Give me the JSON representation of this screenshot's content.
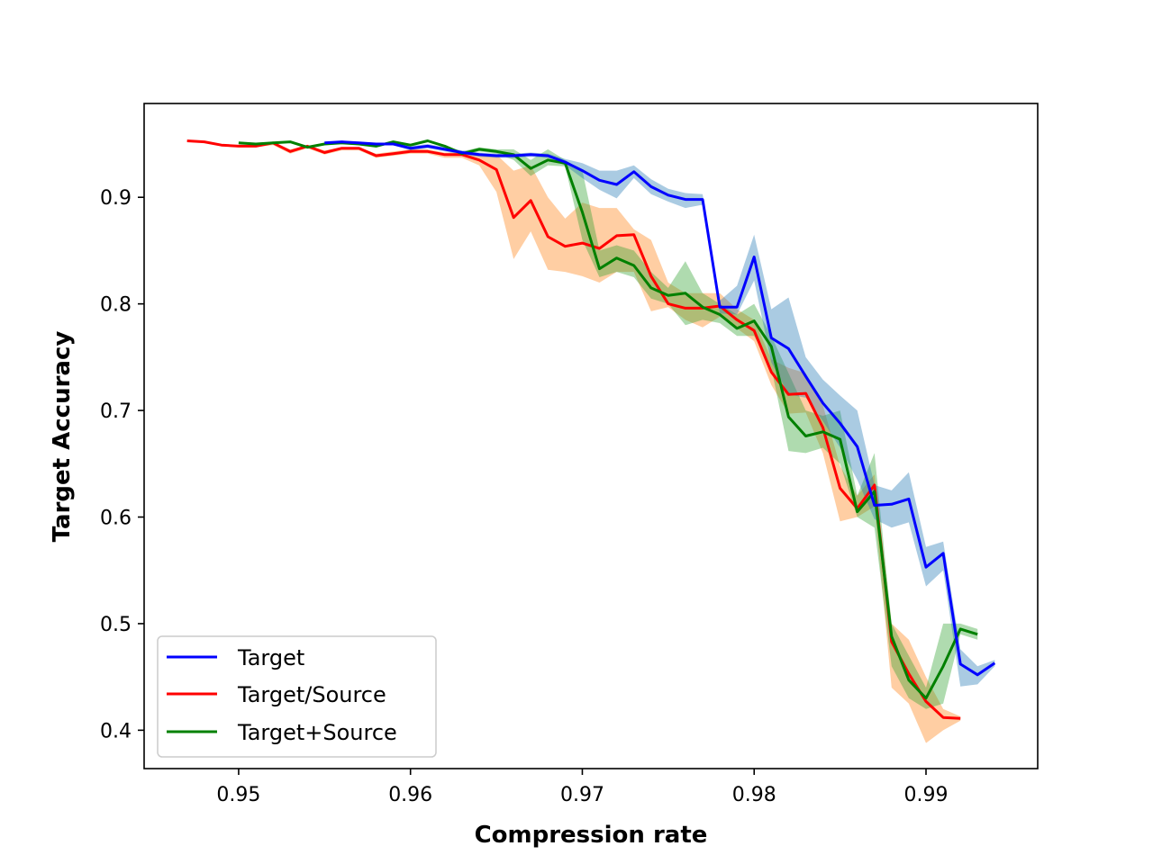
{
  "chart_data": {
    "type": "line",
    "xlabel": "Compression rate",
    "ylabel": "Target Accuracy",
    "xlim": [
      0.9445,
      0.9965
    ],
    "ylim": [
      0.364,
      0.988
    ],
    "x_ticks": [
      0.95,
      0.96,
      0.97,
      0.98,
      0.99
    ],
    "x_tick_labels": [
      "0.95",
      "0.96",
      "0.97",
      "0.98",
      "0.99"
    ],
    "y_ticks": [
      0.4,
      0.5,
      0.6,
      0.7,
      0.8,
      0.9
    ],
    "y_tick_labels": [
      "0.4",
      "0.5",
      "0.6",
      "0.7",
      "0.8",
      "0.9"
    ],
    "grid": false,
    "legend_position": "lower-left",
    "series": [
      {
        "name": "Target",
        "color": "#0000ff",
        "band_color": "#1f77b4",
        "points": [
          [
            0.955,
            0.951,
            0.952,
            0.951
          ],
          [
            0.956,
            0.952,
            0.953,
            0.951
          ],
          [
            0.957,
            0.951,
            0.952,
            0.95
          ],
          [
            0.958,
            0.95,
            0.951,
            0.949
          ],
          [
            0.959,
            0.95,
            0.951,
            0.949
          ],
          [
            0.96,
            0.946,
            0.948,
            0.944
          ],
          [
            0.961,
            0.948,
            0.95,
            0.946
          ],
          [
            0.962,
            0.945,
            0.947,
            0.943
          ],
          [
            0.963,
            0.942,
            0.944,
            0.94
          ],
          [
            0.964,
            0.94,
            0.942,
            0.938
          ],
          [
            0.965,
            0.939,
            0.941,
            0.937
          ],
          [
            0.966,
            0.939,
            0.941,
            0.937
          ],
          [
            0.967,
            0.94,
            0.942,
            0.938
          ],
          [
            0.968,
            0.939,
            0.941,
            0.937
          ],
          [
            0.969,
            0.933,
            0.936,
            0.93
          ],
          [
            0.97,
            0.925,
            0.932,
            0.918
          ],
          [
            0.971,
            0.916,
            0.925,
            0.907
          ],
          [
            0.972,
            0.912,
            0.925,
            0.899
          ],
          [
            0.973,
            0.924,
            0.93,
            0.918
          ],
          [
            0.974,
            0.91,
            0.917,
            0.903
          ],
          [
            0.975,
            0.902,
            0.908,
            0.896
          ],
          [
            0.976,
            0.898,
            0.904,
            0.89
          ],
          [
            0.977,
            0.898,
            0.903,
            0.893
          ],
          [
            0.978,
            0.797,
            0.803,
            0.791
          ],
          [
            0.979,
            0.797,
            0.817,
            0.79
          ],
          [
            0.98,
            0.844,
            0.865,
            0.822
          ],
          [
            0.981,
            0.768,
            0.795,
            0.745
          ],
          [
            0.982,
            0.758,
            0.806,
            0.715
          ],
          [
            0.983,
            0.732,
            0.75,
            0.712
          ],
          [
            0.984,
            0.707,
            0.729,
            0.69
          ],
          [
            0.985,
            0.688,
            0.714,
            0.665
          ],
          [
            0.986,
            0.666,
            0.7,
            0.635
          ],
          [
            0.987,
            0.611,
            0.63,
            0.598
          ],
          [
            0.988,
            0.612,
            0.625,
            0.59
          ],
          [
            0.989,
            0.617,
            0.642,
            0.595
          ],
          [
            0.99,
            0.553,
            0.572,
            0.535
          ],
          [
            0.991,
            0.566,
            0.577,
            0.55
          ],
          [
            0.992,
            0.462,
            0.476,
            0.441
          ],
          [
            0.993,
            0.452,
            0.46,
            0.443
          ],
          [
            0.994,
            0.463,
            0.466,
            0.46
          ]
        ]
      },
      {
        "name": "Target/Source",
        "color": "#ff0000",
        "band_color": "#ff7f0e",
        "points": [
          [
            0.947,
            0.953,
            0.954,
            0.952
          ],
          [
            0.948,
            0.952,
            0.953,
            0.951
          ],
          [
            0.949,
            0.949,
            0.95,
            0.948
          ],
          [
            0.95,
            0.948,
            0.949,
            0.947
          ],
          [
            0.951,
            0.948,
            0.949,
            0.947
          ],
          [
            0.952,
            0.951,
            0.952,
            0.949
          ],
          [
            0.953,
            0.943,
            0.945,
            0.941
          ],
          [
            0.954,
            0.948,
            0.949,
            0.946
          ],
          [
            0.955,
            0.942,
            0.944,
            0.94
          ],
          [
            0.956,
            0.946,
            0.947,
            0.944
          ],
          [
            0.957,
            0.946,
            0.947,
            0.944
          ],
          [
            0.958,
            0.939,
            0.941,
            0.937
          ],
          [
            0.959,
            0.941,
            0.943,
            0.939
          ],
          [
            0.96,
            0.943,
            0.945,
            0.941
          ],
          [
            0.961,
            0.943,
            0.945,
            0.941
          ],
          [
            0.962,
            0.94,
            0.942,
            0.937
          ],
          [
            0.963,
            0.94,
            0.942,
            0.937
          ],
          [
            0.964,
            0.935,
            0.94,
            0.93
          ],
          [
            0.965,
            0.926,
            0.94,
            0.905
          ],
          [
            0.966,
            0.881,
            0.925,
            0.842
          ],
          [
            0.967,
            0.897,
            0.93,
            0.868
          ],
          [
            0.968,
            0.863,
            0.9,
            0.832
          ],
          [
            0.969,
            0.854,
            0.88,
            0.83
          ],
          [
            0.97,
            0.857,
            0.895,
            0.826
          ],
          [
            0.971,
            0.852,
            0.89,
            0.82
          ],
          [
            0.972,
            0.864,
            0.89,
            0.83
          ],
          [
            0.973,
            0.865,
            0.87,
            0.83
          ],
          [
            0.974,
            0.826,
            0.86,
            0.793
          ],
          [
            0.975,
            0.8,
            0.82,
            0.797
          ],
          [
            0.976,
            0.796,
            0.81,
            0.785
          ],
          [
            0.977,
            0.796,
            0.81,
            0.778
          ],
          [
            0.978,
            0.798,
            0.81,
            0.788
          ],
          [
            0.979,
            0.785,
            0.795,
            0.777
          ],
          [
            0.98,
            0.775,
            0.785,
            0.765
          ],
          [
            0.981,
            0.736,
            0.748,
            0.724
          ],
          [
            0.982,
            0.715,
            0.74,
            0.697
          ],
          [
            0.983,
            0.716,
            0.735,
            0.698
          ],
          [
            0.984,
            0.684,
            0.705,
            0.66
          ],
          [
            0.985,
            0.627,
            0.648,
            0.596
          ],
          [
            0.986,
            0.608,
            0.62,
            0.6
          ],
          [
            0.987,
            0.63,
            0.64,
            0.61
          ],
          [
            0.988,
            0.483,
            0.5,
            0.44
          ],
          [
            0.989,
            0.453,
            0.485,
            0.425
          ],
          [
            0.99,
            0.427,
            0.45,
            0.388
          ],
          [
            0.991,
            0.412,
            0.42,
            0.4
          ],
          [
            0.992,
            0.411,
            0.413,
            0.409
          ]
        ]
      },
      {
        "name": "Target+Source",
        "color": "#008000",
        "band_color": "#2ca02c",
        "points": [
          [
            0.95,
            0.951,
            0.952,
            0.95
          ],
          [
            0.951,
            0.95,
            0.951,
            0.949
          ],
          [
            0.952,
            0.951,
            0.952,
            0.95
          ],
          [
            0.953,
            0.952,
            0.953,
            0.951
          ],
          [
            0.954,
            0.947,
            0.948,
            0.946
          ],
          [
            0.955,
            0.95,
            0.951,
            0.949
          ],
          [
            0.956,
            0.951,
            0.952,
            0.95
          ],
          [
            0.957,
            0.95,
            0.951,
            0.949
          ],
          [
            0.958,
            0.948,
            0.949,
            0.947
          ],
          [
            0.959,
            0.952,
            0.953,
            0.951
          ],
          [
            0.96,
            0.949,
            0.95,
            0.948
          ],
          [
            0.961,
            0.953,
            0.954,
            0.952
          ],
          [
            0.962,
            0.948,
            0.949,
            0.947
          ],
          [
            0.963,
            0.941,
            0.943,
            0.939
          ],
          [
            0.964,
            0.945,
            0.947,
            0.943
          ],
          [
            0.965,
            0.943,
            0.945,
            0.941
          ],
          [
            0.966,
            0.94,
            0.945,
            0.935
          ],
          [
            0.967,
            0.927,
            0.935,
            0.92
          ],
          [
            0.968,
            0.935,
            0.945,
            0.93
          ],
          [
            0.969,
            0.932,
            0.935,
            0.929
          ],
          [
            0.97,
            0.886,
            0.925,
            0.86
          ],
          [
            0.971,
            0.833,
            0.85,
            0.825
          ],
          [
            0.972,
            0.843,
            0.855,
            0.83
          ],
          [
            0.973,
            0.836,
            0.85,
            0.825
          ],
          [
            0.974,
            0.815,
            0.83,
            0.805
          ],
          [
            0.975,
            0.808,
            0.815,
            0.8
          ],
          [
            0.976,
            0.81,
            0.84,
            0.78
          ],
          [
            0.977,
            0.797,
            0.81,
            0.785
          ],
          [
            0.978,
            0.79,
            0.8,
            0.782
          ],
          [
            0.979,
            0.777,
            0.79,
            0.77
          ],
          [
            0.98,
            0.784,
            0.8,
            0.77
          ],
          [
            0.981,
            0.76,
            0.77,
            0.74
          ],
          [
            0.982,
            0.694,
            0.735,
            0.662
          ],
          [
            0.983,
            0.676,
            0.7,
            0.66
          ],
          [
            0.984,
            0.68,
            0.695,
            0.665
          ],
          [
            0.985,
            0.673,
            0.7,
            0.65
          ],
          [
            0.986,
            0.605,
            0.62,
            0.6
          ],
          [
            0.987,
            0.624,
            0.66,
            0.59
          ],
          [
            0.988,
            0.488,
            0.5,
            0.46
          ],
          [
            0.989,
            0.447,
            0.47,
            0.43
          ],
          [
            0.99,
            0.43,
            0.44,
            0.42
          ],
          [
            0.991,
            0.46,
            0.5,
            0.425
          ],
          [
            0.992,
            0.495,
            0.5,
            0.49
          ],
          [
            0.993,
            0.49,
            0.495,
            0.485
          ]
        ]
      }
    ]
  }
}
